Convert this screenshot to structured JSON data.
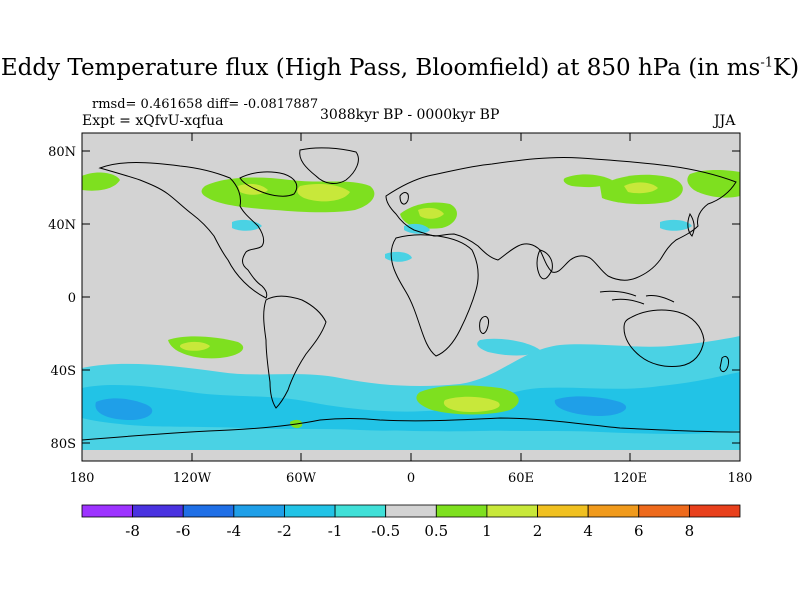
{
  "title": {
    "main": "Eddy Temperature flux (High Pass, Bloomfield) at 850 hPa (in ms",
    "sup": "-1",
    "tail": "K)"
  },
  "stats": {
    "rmsd_diff": "rmsd= 0.461658  diff= -0.0817887",
    "expt": "Expt = xQfvU-xqfua",
    "period": "3088kyr BP - 0000kyr BP",
    "season": "JJA"
  },
  "axes": {
    "y_ticks": [
      "80N",
      "40N",
      "0",
      "40S",
      "80S"
    ],
    "x_ticks": [
      "180",
      "120W",
      "60W",
      "0",
      "60E",
      "120E",
      "180"
    ]
  },
  "colorbar": {
    "labels": [
      "-8",
      "-6",
      "-4",
      "-2",
      "-1",
      "-0.5",
      "0.5",
      "1",
      "2",
      "4",
      "6",
      "8"
    ],
    "colors": [
      "#9d33ff",
      "#4a32e0",
      "#1f6fe6",
      "#1f9fe8",
      "#22c3e6",
      "#40e0d8",
      "#d3d3d3",
      "#7ee01f",
      "#c8e83a",
      "#f0c020",
      "#f09a1c",
      "#ee6a1c",
      "#e8401c"
    ]
  },
  "colors": {
    "land_background": "#d3d3d3",
    "coastline": "#000000",
    "cyan_light": "#4ad2e4",
    "cyan": "#22c3e6",
    "blue": "#1f9fe8",
    "green": "#7ee01f",
    "yellowgreen": "#c8e83a"
  }
}
